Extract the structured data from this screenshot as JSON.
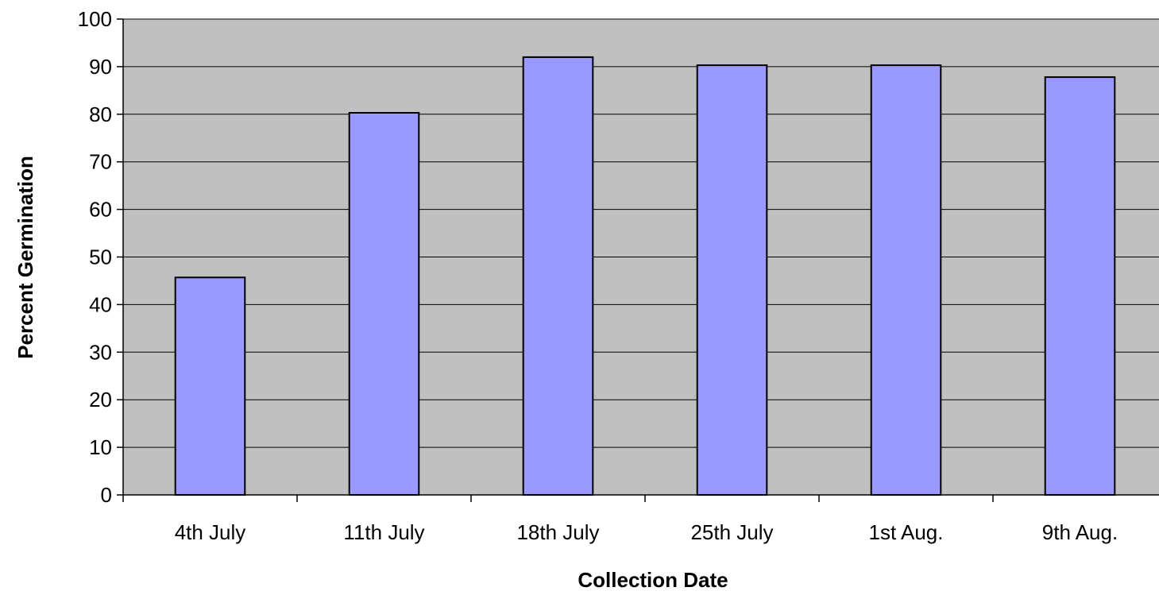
{
  "chart_data": {
    "type": "bar",
    "title": "",
    "xlabel": "Collection Date",
    "ylabel": "Percent Germination",
    "categories": [
      "4th July",
      "11th July",
      "18th July",
      "25th July",
      "1st Aug.",
      "9th Aug."
    ],
    "series": [
      {
        "values": [
          45.7,
          80.3,
          92.0,
          90.3,
          90.3,
          87.8
        ]
      }
    ],
    "ylim": [
      0,
      100
    ],
    "yticks": [
      0,
      10,
      20,
      30,
      40,
      50,
      60,
      70,
      80,
      90,
      100
    ],
    "grid": true,
    "legend": "none",
    "colors": {
      "plot_background": "#c0c0c0",
      "bar_fill": "#9999ff",
      "bar_stroke": "#000000",
      "gridline": "#000000"
    }
  }
}
